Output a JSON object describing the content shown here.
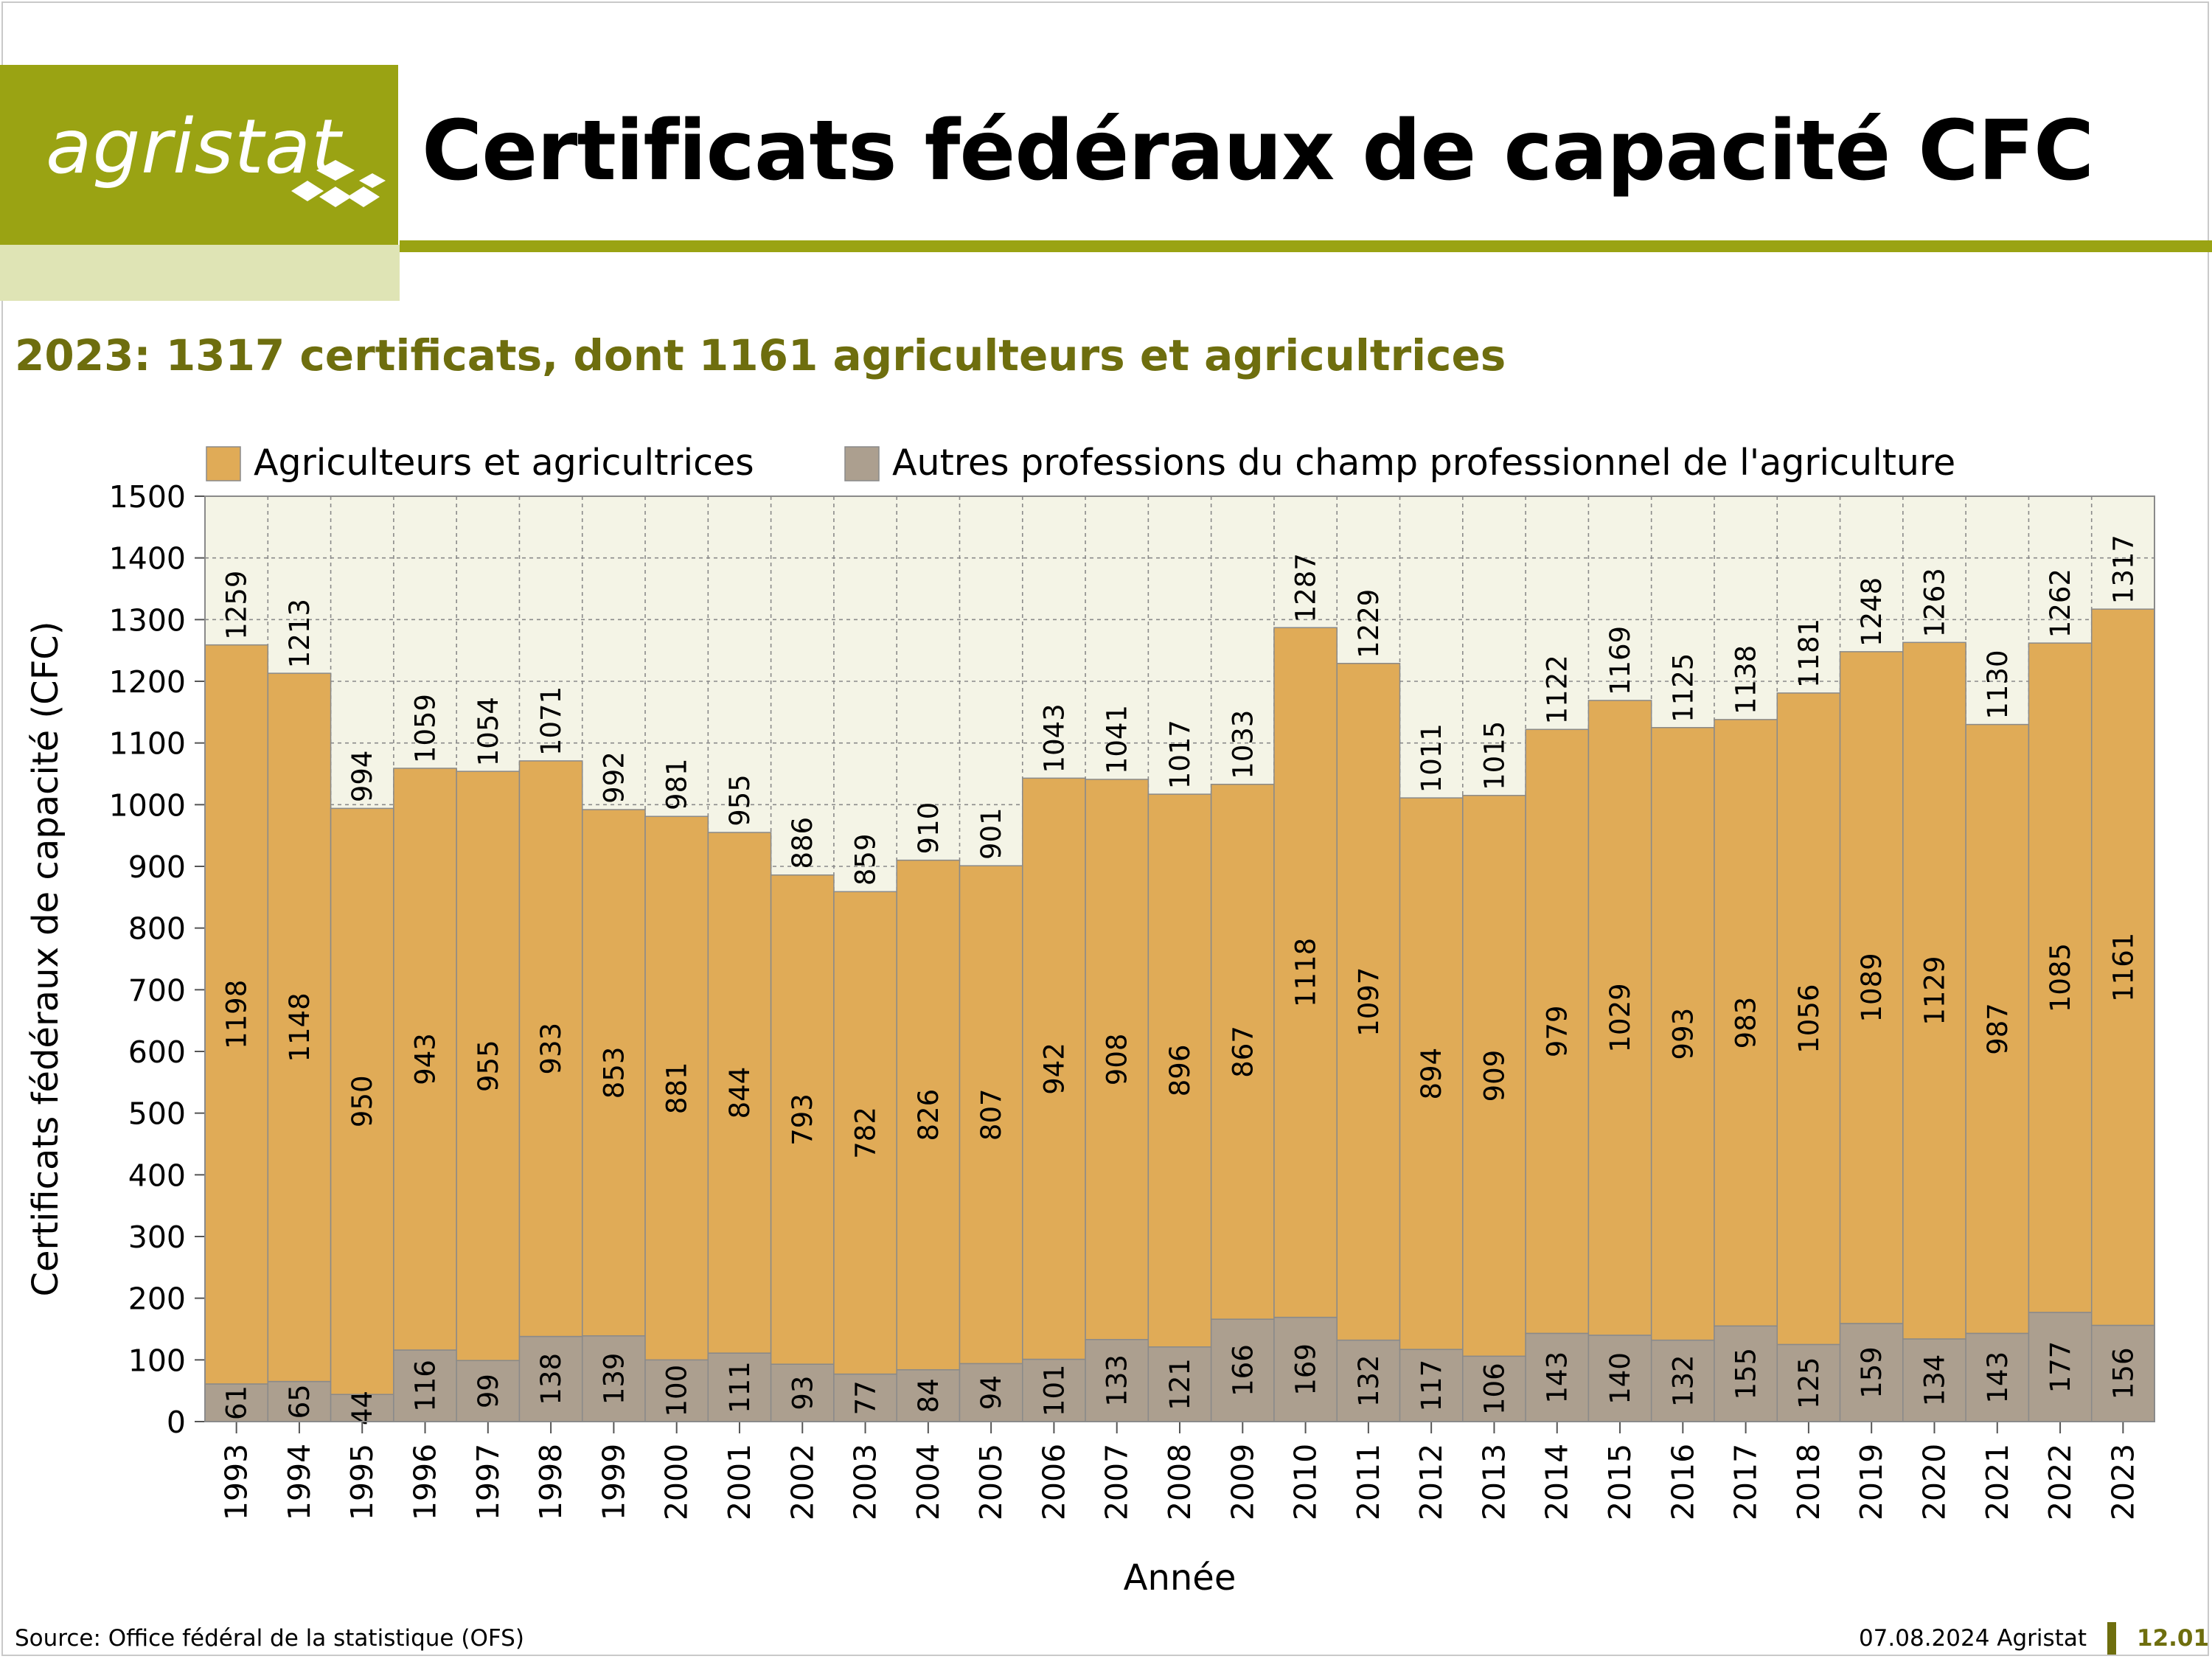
{
  "brand": {
    "logo_text": "agristat"
  },
  "title": "Certificats fédéraux de capacité CFC",
  "subtitle": "2023: 1317 certificats, dont 1161 agriculteurs et agricultrices",
  "colors": {
    "brand_green": "#9aa313",
    "subtitle_olive": "#6e6e0e",
    "series_farmers": "#e0ab57",
    "series_other": "#ac9f8f",
    "plot_background": "#f4f4e6"
  },
  "chart_data": {
    "type": "bar",
    "stacked": true,
    "xlabel": "Année",
    "ylabel": "Certificats fédéraux de capacité (CFC)",
    "ylim": [
      0,
      1500
    ],
    "yticks": [
      0,
      100,
      200,
      300,
      400,
      500,
      600,
      700,
      800,
      900,
      1000,
      1100,
      1200,
      1300,
      1400,
      1500
    ],
    "grid": true,
    "legend_position": "top",
    "categories": [
      "1993",
      "1994",
      "1995",
      "1996",
      "1997",
      "1998",
      "1999",
      "2000",
      "2001",
      "2002",
      "2003",
      "2004",
      "2005",
      "2006",
      "2007",
      "2008",
      "2009",
      "2010",
      "2011",
      "2012",
      "2013",
      "2014",
      "2015",
      "2016",
      "2017",
      "2018",
      "2019",
      "2020",
      "2021",
      "2022",
      "2023"
    ],
    "series": [
      {
        "name": "Autres professions du champ professionnel de l'agriculture",
        "color": "#ac9f8f",
        "values": [
          61,
          65,
          44,
          116,
          99,
          138,
          139,
          100,
          111,
          93,
          77,
          84,
          94,
          101,
          133,
          121,
          166,
          169,
          132,
          117,
          106,
          143,
          140,
          132,
          155,
          125,
          159,
          134,
          143,
          177,
          156
        ]
      },
      {
        "name": "Agriculteurs et agricultrices",
        "color": "#e0ab57",
        "values": [
          1198,
          1148,
          950,
          943,
          955,
          933,
          853,
          881,
          844,
          793,
          782,
          826,
          807,
          942,
          908,
          896,
          867,
          1118,
          1097,
          894,
          909,
          979,
          1029,
          993,
          983,
          1056,
          1089,
          1129,
          987,
          1085,
          1161
        ]
      }
    ],
    "totals": [
      1259,
      1213,
      994,
      1059,
      1054,
      1071,
      992,
      981,
      955,
      886,
      859,
      910,
      901,
      1043,
      1041,
      1017,
      1033,
      1287,
      1229,
      1011,
      1015,
      1122,
      1169,
      1125,
      1138,
      1181,
      1248,
      1263,
      1130,
      1262,
      1317
    ],
    "legend_order": [
      "Agriculteurs et agricultrices",
      "Autres professions du champ professionnel de l'agriculture"
    ]
  },
  "footer": {
    "source": "Source: Office fédéral de la statistique (OFS)",
    "date": "07.08.2024 Agristat",
    "page": "12.01"
  }
}
